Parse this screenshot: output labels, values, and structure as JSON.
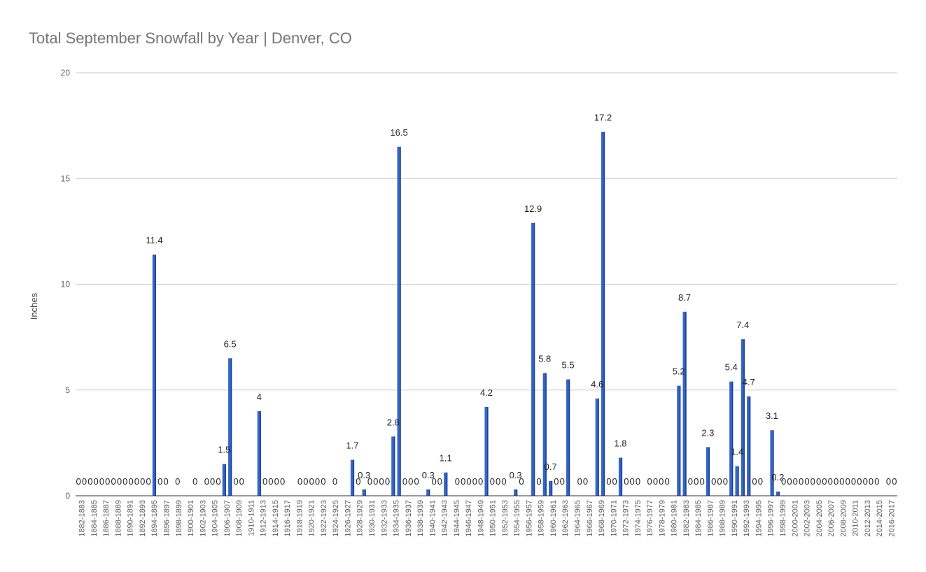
{
  "chart_data": {
    "type": "bar",
    "title": "Total September Snowfall by Year | Denver, CO",
    "ylabel": "Inches",
    "xlabel": "",
    "ylim": [
      0,
      20
    ],
    "yticks": [
      0,
      5,
      10,
      15,
      20
    ],
    "grid": true,
    "bar_color": "#3366cc",
    "x_tick_labels": [
      "1882-1883",
      "1884-1885",
      "1886-1887",
      "1888-1889",
      "1890-1891",
      "1892-1893",
      "1894-1895",
      "1896-1897",
      "1898-1899",
      "1900-1901",
      "1902-1903",
      "1904-1905",
      "1906-1907",
      "1908-1909",
      "1910-1911",
      "1912-1913",
      "1914-1915",
      "1916-1917",
      "1918-1919",
      "1920-1921",
      "1922-1923",
      "1924-1925",
      "1926-1927",
      "1928-1929",
      "1930-1931",
      "1932-1933",
      "1934-1935",
      "1936-1937",
      "1938-1939",
      "1940-1941",
      "1942-1943",
      "1944-1945",
      "1946-1947",
      "1948-1949",
      "1950-1951",
      "1952-1953",
      "1954-1955",
      "1956-1957",
      "1958-1959",
      "1960-1961",
      "1962-1963",
      "1964-1965",
      "1966-1967",
      "1968-1969",
      "1970-1971",
      "1972-1973",
      "1974-1975",
      "1976-1977",
      "1978-1979",
      "1980-1981",
      "1982-1983",
      "1984-1985",
      "1986-1987",
      "1988-1989",
      "1990-1991",
      "1992-1993",
      "1994-1995",
      "1996-1997",
      "1998-1999",
      "2000-2001",
      "2002-2003",
      "2004-2005",
      "2006-2007",
      "2008-2009",
      "2010-2011",
      "2012-2013",
      "2014-2015",
      "2016-2017"
    ],
    "values": [
      0,
      0,
      0,
      0,
      0,
      0,
      0,
      0,
      0,
      0,
      0,
      0,
      0,
      11.4,
      0,
      0,
      null,
      0,
      null,
      null,
      0,
      null,
      0,
      0,
      0,
      1.5,
      6.5,
      0,
      0,
      null,
      null,
      4,
      0,
      0,
      0,
      0,
      null,
      null,
      0,
      0,
      0,
      0,
      0,
      null,
      0,
      null,
      null,
      1.7,
      0,
      0.3,
      0,
      0,
      0,
      0,
      2.8,
      16.5,
      0,
      0,
      0,
      null,
      0.3,
      0,
      0,
      1.1,
      null,
      0,
      0,
      0,
      0,
      0,
      4.2,
      0,
      0,
      0,
      null,
      0.3,
      0,
      null,
      12.9,
      0,
      5.8,
      0.7,
      0,
      0,
      5.5,
      null,
      0,
      0,
      null,
      4.6,
      17.2,
      0,
      0,
      1.8,
      0,
      0,
      0,
      null,
      0,
      0,
      0,
      0,
      null,
      5.2,
      8.7,
      0,
      0,
      0,
      2.3,
      0,
      0,
      0,
      5.4,
      1.4,
      7.4,
      4.7,
      0,
      0,
      null,
      3.1,
      0.2,
      0,
      0,
      0,
      0,
      0,
      0,
      0,
      0,
      0,
      0,
      0,
      0,
      0,
      0,
      0,
      0,
      0,
      null,
      0,
      0
    ]
  }
}
